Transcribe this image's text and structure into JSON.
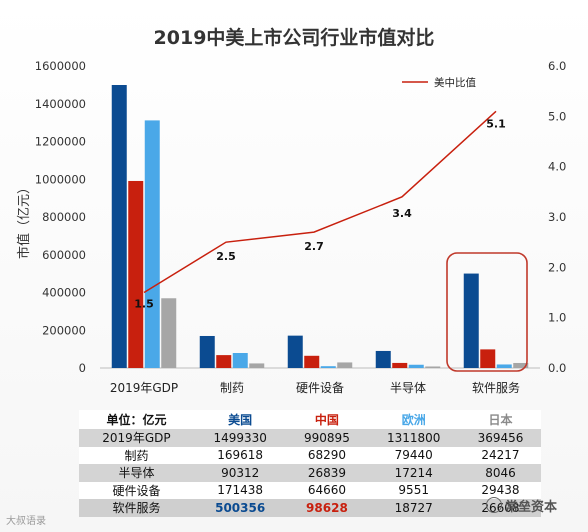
{
  "chart_data": {
    "type": "bar",
    "title": "2019中美上市公司行业市值对比",
    "ylabel": "市值（亿元）",
    "ylim": [
      0,
      1600000
    ],
    "yticks": [
      "0",
      "200000",
      "400000",
      "600000",
      "800000",
      "1000000",
      "1200000",
      "1400000",
      "1600000"
    ],
    "y2lim": [
      0,
      6
    ],
    "y2ticks": [
      "0.0",
      "1.0",
      "2.0",
      "3.0",
      "4.0",
      "5.0",
      "6.0"
    ],
    "categories": [
      "2019年GDP",
      "制药",
      "硬件设备",
      "半导体",
      "软件服务"
    ],
    "series": [
      {
        "name": "美国",
        "color": "#0b4b91",
        "values": [
          1499330,
          169618,
          171438,
          90312,
          500356
        ]
      },
      {
        "name": "中国",
        "color": "#c8200e",
        "values": [
          990895,
          68290,
          64660,
          26839,
          98628
        ]
      },
      {
        "name": "欧洲",
        "color": "#4aa8e8",
        "values": [
          1311800,
          79440,
          9551,
          17214,
          18727
        ]
      },
      {
        "name": "日本",
        "color": "#a6a6a6",
        "values": [
          369456,
          24217,
          29438,
          8046,
          26608
        ]
      }
    ],
    "ratio_line": {
      "name": "美中比值",
      "color": "#c8200e",
      "axis": "right",
      "values": [
        1.5,
        2.5,
        2.7,
        3.4,
        5.1
      ],
      "labels": [
        "1.5",
        "2.5",
        "2.7",
        "3.4",
        "5.1"
      ]
    },
    "legend_position": "top-right",
    "highlight_category": "软件服务",
    "grid": false
  },
  "table": {
    "unit_label": "单位：亿元",
    "headers": [
      "美国",
      "中国",
      "欧洲",
      "日本"
    ],
    "rows": [
      {
        "label": "2019年GDP",
        "values": [
          "1499330",
          "990895",
          "1311800",
          "369456"
        ]
      },
      {
        "label": "制药",
        "values": [
          "169618",
          "68290",
          "79440",
          "24217"
        ]
      },
      {
        "label": "半导体",
        "values": [
          "90312",
          "26839",
          "17214",
          "8046"
        ]
      },
      {
        "label": "硬件设备",
        "values": [
          "171438",
          "64660",
          "9551",
          "29438"
        ]
      },
      {
        "label": "软件服务",
        "values": [
          "500356",
          "98628",
          "18727",
          "26608"
        ]
      }
    ]
  },
  "watermarks": {
    "left": "大叔语录",
    "right": "常垒资本"
  }
}
